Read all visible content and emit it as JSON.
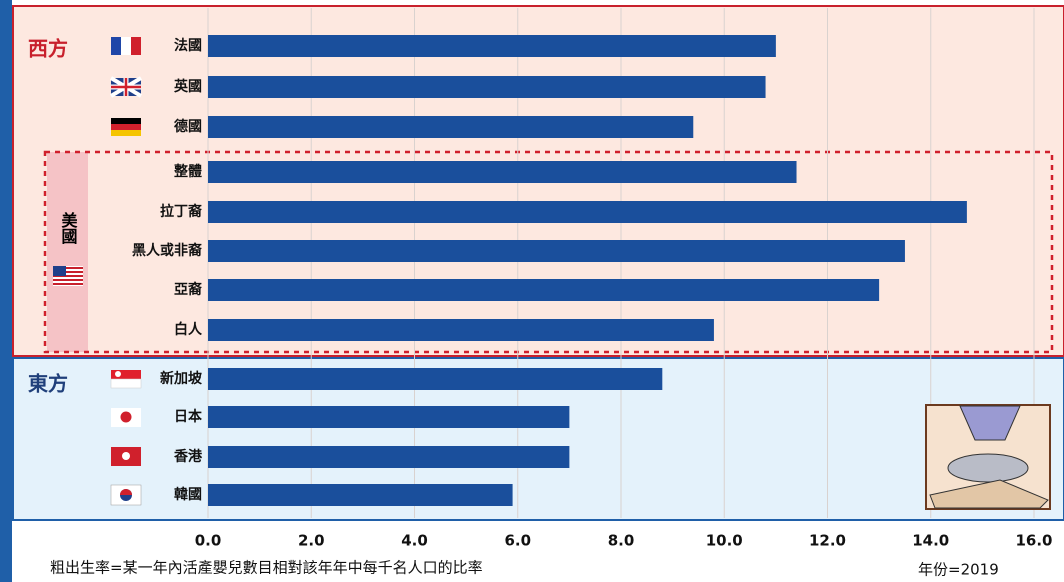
{
  "chart_data": {
    "type": "bar",
    "orientation": "horizontal",
    "categories": [
      "法國",
      "英國",
      "德國",
      "整體",
      "拉丁裔",
      "黑人或非裔",
      "亞裔",
      "白人",
      "新加坡",
      "日本",
      "香港",
      "韓國"
    ],
    "values": [
      11.0,
      10.8,
      9.4,
      11.4,
      14.7,
      13.5,
      13.0,
      9.8,
      8.8,
      7.0,
      7.0,
      5.9
    ],
    "color": "#1a4f9c",
    "xlim": [
      0,
      16
    ],
    "xticks": [
      {
        "value": 0,
        "label": "0.0"
      },
      {
        "value": 2,
        "label": "2.0"
      },
      {
        "value": 4,
        "label": "4.0"
      },
      {
        "value": 6,
        "label": "6.0"
      },
      {
        "value": 8,
        "label": "8.0"
      },
      {
        "value": 10,
        "label": "10.0"
      },
      {
        "value": 12,
        "label": "12.0"
      },
      {
        "value": 14,
        "label": "14.0"
      },
      {
        "value": 16,
        "label": "16.0"
      }
    ],
    "grid": true,
    "groups": [
      "西方",
      "美國",
      "東方"
    ],
    "note": "粗出生率=某一年內活產嬰兒數目相對該年年中每千名人口的比率",
    "year_note": "年份=2019"
  }
}
